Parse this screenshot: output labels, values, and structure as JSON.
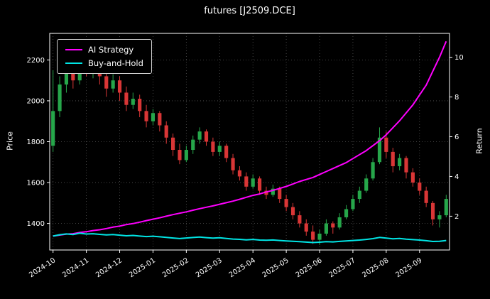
{
  "window": {
    "title": "futures [J2509.DCE]"
  },
  "colors": {
    "background": "#000000",
    "text": "#ffffff",
    "grid": "#555555",
    "spine": "#ffffff",
    "candle_up": "#26a64a",
    "candle_down": "#d93636",
    "ai_line": "#ff00ff",
    "bh_line": "#00e5e5"
  },
  "chart_data": {
    "type": "candlestick+line",
    "title": "futures [J2509.DCE]",
    "ylabel_left": "Price",
    "ylabel_right": "Return",
    "grid": "dotted",
    "legend_position": "upper-left",
    "price_ylim": [
      1270,
      2330
    ],
    "price_ticks": [
      1400,
      1600,
      1800,
      2000,
      2200
    ],
    "return_ylim": [
      0.3,
      11.2
    ],
    "return_ticks": [
      2,
      4,
      6,
      8,
      10
    ],
    "x_tick_labels": [
      "2024-10",
      "2024-11",
      "2024-12",
      "2025-01",
      "2025-02",
      "2025-03",
      "2025-04",
      "2025-05",
      "2025-06",
      "2025-07",
      "2025-08",
      "2025-09"
    ],
    "x_tick_indices": [
      0,
      5,
      10,
      15,
      20,
      25,
      30,
      35,
      40,
      45,
      50,
      55
    ],
    "candles": [
      [
        1780,
        2150,
        1750,
        1950
      ],
      [
        1950,
        2120,
        1920,
        2080
      ],
      [
        2080,
        2200,
        2040,
        2160
      ],
      [
        2160,
        2190,
        2060,
        2100
      ],
      [
        2100,
        2280,
        2080,
        2230
      ],
      [
        2230,
        2260,
        2120,
        2150
      ],
      [
        2150,
        2210,
        2110,
        2180
      ],
      [
        2180,
        2200,
        2080,
        2120
      ],
      [
        2120,
        2150,
        2020,
        2060
      ],
      [
        2060,
        2130,
        2040,
        2100
      ],
      [
        2100,
        2120,
        2000,
        2040
      ],
      [
        2040,
        2070,
        1950,
        1980
      ],
      [
        1980,
        2040,
        1960,
        2010
      ],
      [
        2010,
        2030,
        1920,
        1950
      ],
      [
        1950,
        1980,
        1870,
        1900
      ],
      [
        1900,
        1960,
        1880,
        1940
      ],
      [
        1940,
        1950,
        1850,
        1880
      ],
      [
        1880,
        1900,
        1790,
        1820
      ],
      [
        1820,
        1840,
        1730,
        1760
      ],
      [
        1760,
        1790,
        1690,
        1710
      ],
      [
        1710,
        1780,
        1700,
        1760
      ],
      [
        1760,
        1830,
        1740,
        1810
      ],
      [
        1810,
        1870,
        1790,
        1850
      ],
      [
        1850,
        1860,
        1780,
        1800
      ],
      [
        1800,
        1820,
        1730,
        1750
      ],
      [
        1750,
        1800,
        1730,
        1780
      ],
      [
        1780,
        1790,
        1700,
        1720
      ],
      [
        1720,
        1740,
        1640,
        1660
      ],
      [
        1660,
        1680,
        1610,
        1630
      ],
      [
        1630,
        1650,
        1560,
        1580
      ],
      [
        1580,
        1640,
        1570,
        1620
      ],
      [
        1620,
        1630,
        1540,
        1560
      ],
      [
        1560,
        1580,
        1520,
        1540
      ],
      [
        1540,
        1590,
        1530,
        1570
      ],
      [
        1570,
        1580,
        1500,
        1520
      ],
      [
        1520,
        1540,
        1460,
        1480
      ],
      [
        1480,
        1500,
        1420,
        1440
      ],
      [
        1440,
        1460,
        1380,
        1400
      ],
      [
        1400,
        1420,
        1340,
        1360
      ],
      [
        1360,
        1390,
        1300,
        1320
      ],
      [
        1320,
        1370,
        1295,
        1350
      ],
      [
        1350,
        1420,
        1340,
        1400
      ],
      [
        1400,
        1410,
        1350,
        1380
      ],
      [
        1380,
        1450,
        1370,
        1430
      ],
      [
        1430,
        1490,
        1420,
        1470
      ],
      [
        1470,
        1540,
        1460,
        1520
      ],
      [
        1520,
        1580,
        1500,
        1560
      ],
      [
        1560,
        1640,
        1550,
        1620
      ],
      [
        1620,
        1720,
        1610,
        1700
      ],
      [
        1700,
        1870,
        1690,
        1820
      ],
      [
        1820,
        1850,
        1720,
        1750
      ],
      [
        1750,
        1770,
        1650,
        1680
      ],
      [
        1680,
        1740,
        1660,
        1720
      ],
      [
        1720,
        1730,
        1620,
        1650
      ],
      [
        1650,
        1670,
        1580,
        1600
      ],
      [
        1600,
        1620,
        1540,
        1560
      ],
      [
        1560,
        1580,
        1480,
        1500
      ],
      [
        1500,
        1510,
        1390,
        1420
      ],
      [
        1420,
        1460,
        1380,
        1440
      ],
      [
        1440,
        1540,
        1430,
        1520
      ]
    ],
    "series": [
      {
        "name": "AI Strategy",
        "axis": "right",
        "color": "#ff00ff",
        "values": [
          1.0,
          1.05,
          1.1,
          1.12,
          1.18,
          1.22,
          1.28,
          1.32,
          1.38,
          1.45,
          1.5,
          1.58,
          1.63,
          1.7,
          1.78,
          1.85,
          1.92,
          2.0,
          2.08,
          2.15,
          2.22,
          2.3,
          2.38,
          2.45,
          2.52,
          2.6,
          2.68,
          2.76,
          2.85,
          2.95,
          3.05,
          3.12,
          3.22,
          3.3,
          3.4,
          3.5,
          3.62,
          3.75,
          3.85,
          3.95,
          4.1,
          4.25,
          4.4,
          4.55,
          4.7,
          4.9,
          5.1,
          5.3,
          5.55,
          5.8,
          6.1,
          6.45,
          6.8,
          7.2,
          7.6,
          8.1,
          8.6,
          9.3,
          10.0,
          10.8
        ]
      },
      {
        "name": "Buy-and-Hold",
        "axis": "right",
        "color": "#00e5e5",
        "values": [
          1.0,
          1.067,
          1.108,
          1.077,
          1.144,
          1.103,
          1.118,
          1.087,
          1.056,
          1.077,
          1.046,
          1.015,
          1.031,
          1.0,
          0.974,
          0.995,
          0.964,
          0.933,
          0.903,
          0.877,
          0.903,
          0.928,
          0.949,
          0.923,
          0.897,
          0.913,
          0.882,
          0.851,
          0.836,
          0.81,
          0.831,
          0.8,
          0.79,
          0.805,
          0.779,
          0.759,
          0.738,
          0.718,
          0.697,
          0.677,
          0.692,
          0.718,
          0.708,
          0.733,
          0.754,
          0.779,
          0.8,
          0.831,
          0.872,
          0.933,
          0.897,
          0.862,
          0.882,
          0.846,
          0.821,
          0.8,
          0.769,
          0.728,
          0.738,
          0.779
        ]
      }
    ]
  }
}
